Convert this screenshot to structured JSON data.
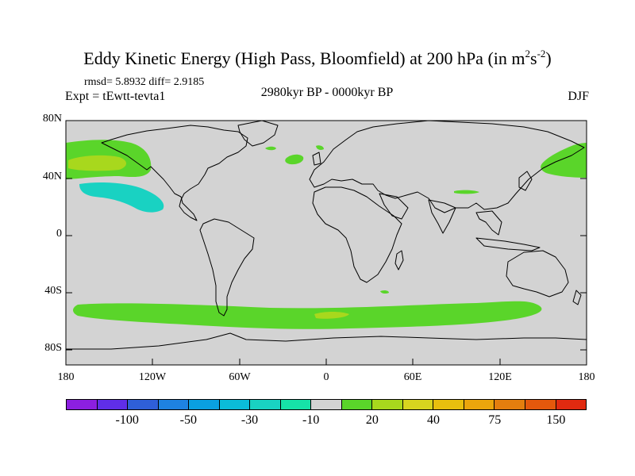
{
  "header": {
    "title_main": "Eddy Kinetic Energy (High Pass, Bloomfield) at 200 hPa (in m",
    "title_exp1": "2",
    "title_mid": "s",
    "title_exp2": "-2",
    "title_end": ")",
    "stats": "rmsd= 5.8932 diff= 2.9185",
    "experiment": "Expt = tEwtt-tevta1",
    "period": "2980kyr BP - 0000kyr BP",
    "season": "DJF"
  },
  "map": {
    "lat_labels": [
      "80N",
      "40N",
      "0",
      "40S",
      "80S"
    ],
    "lat_values": [
      80,
      40,
      0,
      -40,
      -80
    ],
    "lon_labels": [
      "180",
      "120W",
      "60W",
      "0",
      "60E",
      "120E",
      "180"
    ],
    "lon_values": [
      -180,
      -120,
      -60,
      0,
      60,
      120,
      180
    ],
    "background_color": "#d3d3d3",
    "coast_color": "#000000"
  },
  "colorbar": {
    "colors": [
      "#8c1fe0",
      "#5f2ee8",
      "#2f5fd8",
      "#1e82e0",
      "#0aa0e0",
      "#0bbcd8",
      "#19d2c2",
      "#16e2a8",
      "#d3d3d3",
      "#5ad52a",
      "#a8d81d",
      "#d7d41f",
      "#e8bf0e",
      "#eba50c",
      "#e47e0e",
      "#e4580c",
      "#e02a10"
    ],
    "labels": [
      "-100",
      "-50",
      "-30",
      "-10",
      "20",
      "40",
      "75",
      "150"
    ],
    "label_after_box": [
      1,
      3,
      5,
      7,
      9,
      11,
      13,
      15
    ]
  },
  "chart_data": {
    "type": "filled-contour-map",
    "variable": "Eddy Kinetic Energy difference (High Pass, Bloomfield) at 200 hPa",
    "units": "m2s-2",
    "projection": "cylindrical equidistant",
    "lon_range": [
      -180,
      180
    ],
    "lat_range": [
      -90,
      90
    ],
    "levels": [
      -150,
      -100,
      -75,
      -50,
      -40,
      -30,
      -20,
      -10,
      10,
      20,
      30,
      40,
      50,
      75,
      100,
      150
    ],
    "features": [
      {
        "region": "North Pacific (30N-60N, 180-125W)",
        "value_range": [
          10,
          30
        ]
      },
      {
        "region": "North Pacific core (around 160W, 45N)",
        "value_range": [
          20,
          30
        ]
      },
      {
        "region": "East Pacific subtropics (around 140W, 25N)",
        "value_range": [
          -20,
          -10
        ]
      },
      {
        "region": "West Pacific / Japan (35N-60N, 145E-180)",
        "value_range": [
          10,
          20
        ]
      },
      {
        "region": "North Atlantic (around 15W, 45N)",
        "value_range": [
          10,
          20
        ]
      },
      {
        "region": "Southern Ocean band (45S-62S, 170W-140E)",
        "value_range": [
          10,
          20
        ]
      },
      {
        "region": "South Atlantic core (around 5W, 54S)",
        "value_range": [
          20,
          30
        ]
      }
    ]
  }
}
